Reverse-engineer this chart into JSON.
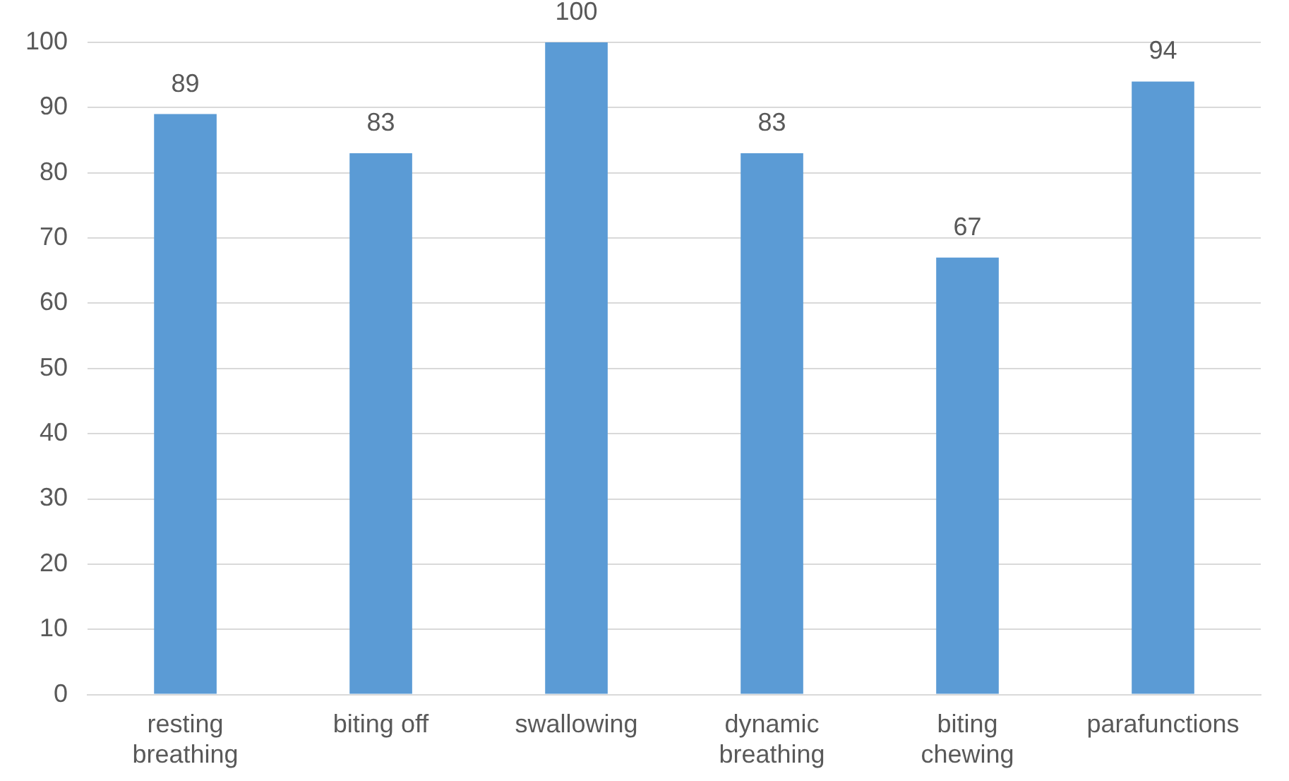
{
  "chart_data": {
    "type": "bar",
    "categories": [
      "resting breathing",
      "biting off",
      "swallowing",
      "dynamic breathing",
      "biting chewing",
      "parafunctions"
    ],
    "values": [
      89,
      83,
      100,
      83,
      67,
      94
    ],
    "color": "#5b9bd5",
    "ylim": [
      0,
      100
    ],
    "yticks": [
      0,
      10,
      20,
      30,
      40,
      50,
      60,
      70,
      80,
      90,
      100
    ],
    "grid": "y",
    "data_labels": true,
    "legend": false
  }
}
